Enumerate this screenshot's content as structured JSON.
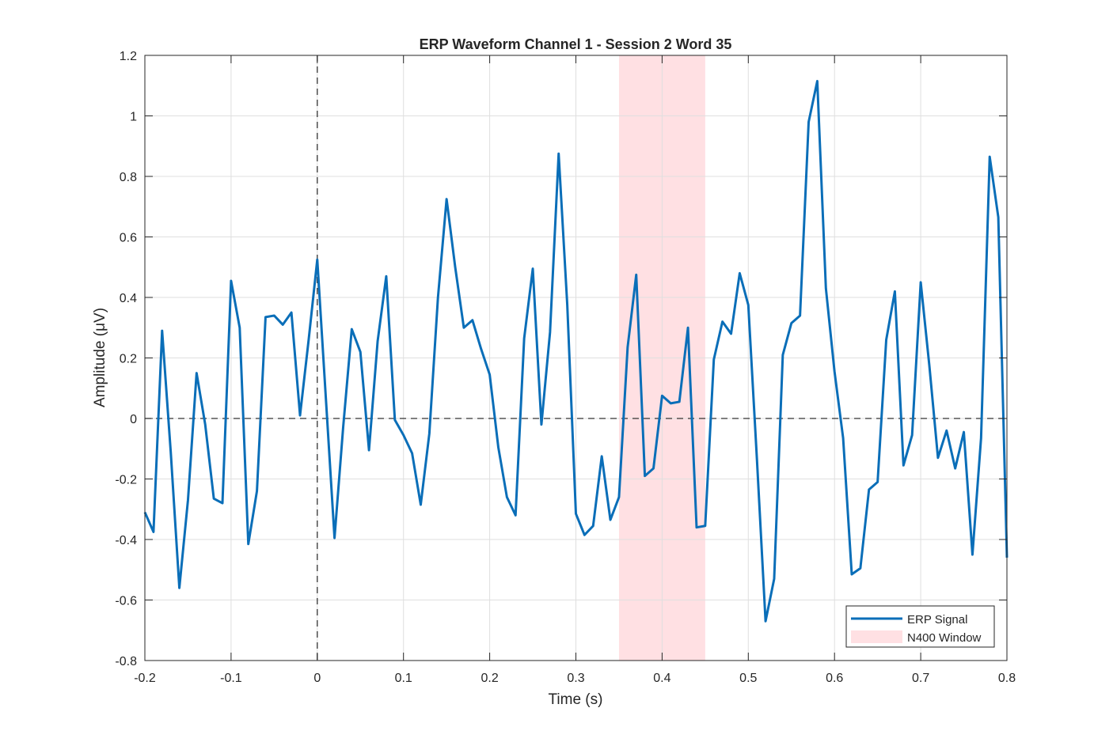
{
  "chart_data": {
    "type": "line",
    "title": "ERP Waveform Channel 1 - Session 2 Word 35",
    "xlabel": "Time (s)",
    "ylabel": "Amplitude (μV)",
    "xlim": [
      -0.2,
      0.8
    ],
    "ylim": [
      -0.8,
      1.2
    ],
    "xticks": [
      -0.2,
      -0.1,
      0,
      0.1,
      0.2,
      0.3,
      0.4,
      0.5,
      0.6,
      0.7,
      0.8
    ],
    "xtick_labels": [
      "-0.2",
      "-0.1",
      "0",
      "0.1",
      "0.2",
      "0.3",
      "0.4",
      "0.5",
      "0.6",
      "0.7",
      "0.8"
    ],
    "yticks": [
      -0.8,
      -0.6,
      -0.4,
      -0.2,
      0,
      0.2,
      0.4,
      0.6,
      0.8,
      1,
      1.2
    ],
    "ytick_labels": [
      "-0.8",
      "-0.6",
      "-0.4",
      "-0.2",
      "0",
      "0.2",
      "0.4",
      "0.6",
      "0.8",
      "1",
      "1.2"
    ],
    "grid": true,
    "legend_position": "bottom-right",
    "zero_line_y": 0,
    "onset_line_x": 0,
    "n400_window": {
      "name": "N400 Window",
      "x": [
        0.35,
        0.45
      ],
      "color": "#ffe0e3"
    },
    "series": [
      {
        "name": "ERP Signal",
        "color": "#0a6eb8",
        "x": [
          -0.2,
          -0.19,
          -0.18,
          -0.17,
          -0.16,
          -0.15,
          -0.14,
          -0.13,
          -0.12,
          -0.11,
          -0.1,
          -0.09,
          -0.08,
          -0.07,
          -0.06,
          -0.05,
          -0.04,
          -0.03,
          -0.02,
          -0.01,
          0,
          0.01,
          0.02,
          0.03,
          0.04,
          0.05,
          0.06,
          0.07,
          0.08,
          0.09,
          0.1,
          0.11,
          0.12,
          0.13,
          0.14,
          0.15,
          0.16,
          0.17,
          0.18,
          0.19,
          0.2,
          0.21,
          0.22,
          0.23,
          0.24,
          0.25,
          0.26,
          0.27,
          0.28,
          0.29,
          0.3,
          0.31,
          0.32,
          0.33,
          0.34,
          0.35,
          0.36,
          0.37,
          0.38,
          0.39,
          0.4,
          0.41,
          0.42,
          0.43,
          0.44,
          0.45,
          0.46,
          0.47,
          0.48,
          0.49,
          0.5,
          0.51,
          0.52,
          0.53,
          0.54,
          0.55,
          0.56,
          0.57,
          0.58,
          0.59,
          0.6,
          0.61,
          0.62,
          0.63,
          0.64,
          0.65,
          0.66,
          0.67,
          0.68,
          0.69,
          0.7,
          0.71,
          0.72,
          0.73,
          0.74,
          0.75,
          0.76,
          0.77,
          0.78,
          0.79,
          0.8
        ],
        "y": [
          -0.31,
          -0.375,
          0.29,
          -0.11,
          -0.56,
          -0.27,
          0.15,
          -0.02,
          -0.265,
          -0.28,
          0.455,
          0.3,
          -0.415,
          -0.24,
          0.335,
          0.34,
          0.31,
          0.35,
          0.01,
          0.26,
          0.525,
          0.065,
          -0.395,
          -0.03,
          0.295,
          0.22,
          -0.105,
          0.255,
          0.47,
          -0.005,
          -0.055,
          -0.115,
          -0.285,
          -0.05,
          0.4,
          0.725,
          0.5,
          0.3,
          0.325,
          0.23,
          0.145,
          -0.095,
          -0.26,
          -0.32,
          0.265,
          0.495,
          -0.02,
          0.285,
          0.875,
          0.375,
          -0.315,
          -0.385,
          -0.355,
          -0.125,
          -0.335,
          -0.26,
          0.235,
          0.475,
          -0.19,
          -0.165,
          0.075,
          0.05,
          0.055,
          0.3,
          -0.36,
          -0.355,
          0.195,
          0.32,
          0.28,
          0.48,
          0.375,
          -0.135,
          -0.67,
          -0.53,
          0.21,
          0.315,
          0.34,
          0.98,
          1.115,
          0.43,
          0.155,
          -0.065,
          -0.515,
          -0.495,
          -0.235,
          -0.21,
          0.26,
          0.42,
          -0.155,
          -0.055,
          0.45,
          0.175,
          -0.13,
          -0.04,
          -0.165,
          -0.045,
          -0.45,
          -0.065,
          0.865,
          0.665,
          -0.46
        ]
      }
    ]
  }
}
